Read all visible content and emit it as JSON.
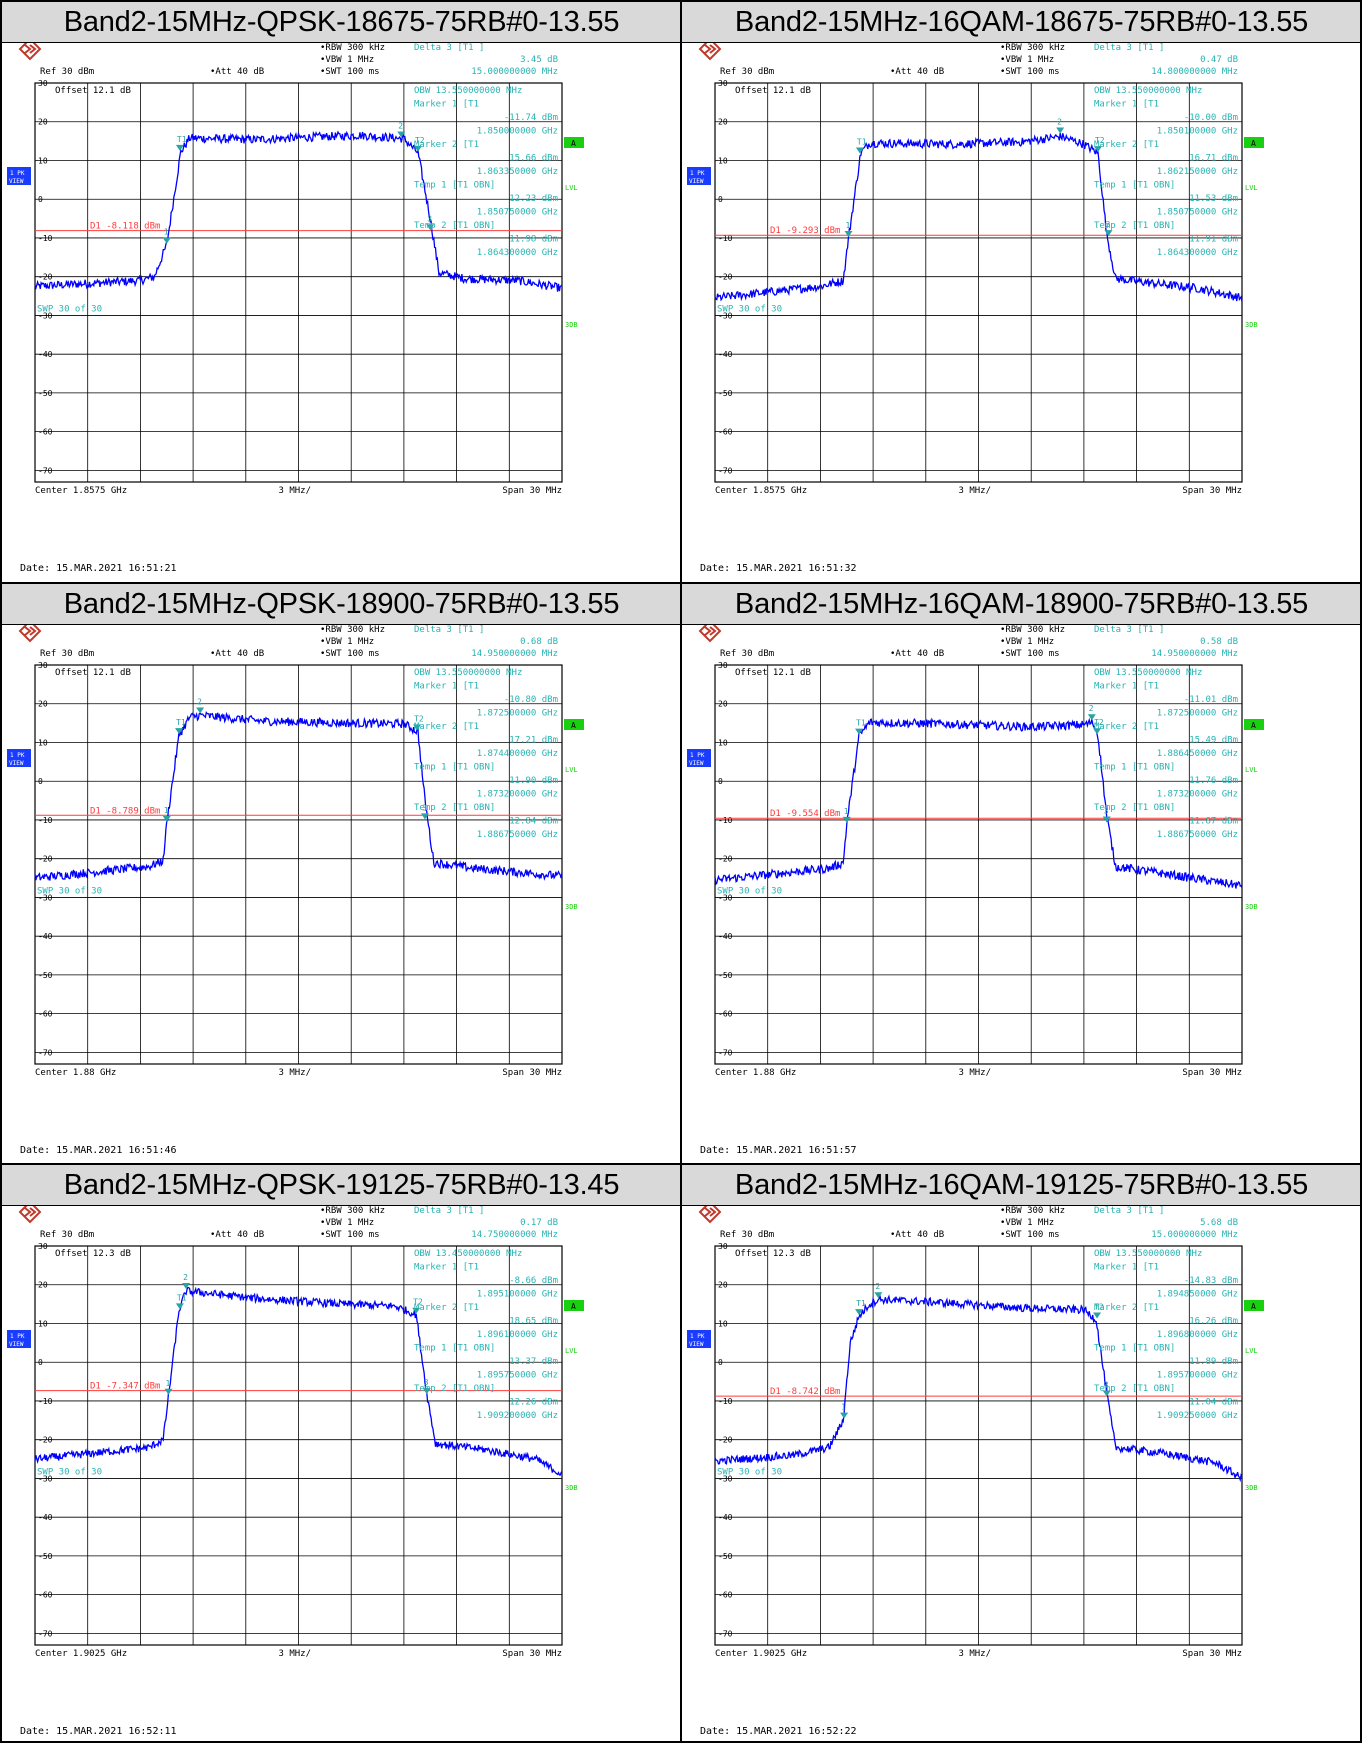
{
  "panels": [
    {
      "title": "Band2-15MHz-QPSK-18675-75RB#0-13.55",
      "settings": {
        "rbw": "RBW 300 kHz",
        "vbw": "VBW 1 MHz",
        "swt": "SWT 100 ms",
        "ref": "Ref  30 dBm",
        "att": "Att  40 dB",
        "offset": "Offset  12.1 dB"
      },
      "readout": [
        "Delta 3 [T1 ]",
        "3.45 dB",
        "15.000000000 MHz",
        "OBW 13.550000000 MHz",
        "Marker 1 [T1",
        "-11.74 dBm",
        "1.850000000 GHz",
        "Marker 2 [T1",
        "15.66 dBm",
        "1.863350000 GHz",
        "Temp 1 [T1 OBN]",
        "12.23 dBm",
        "1.850750000 GHz",
        "Temp 2 [T1 OBN]",
        "11.98 dBm",
        "1.864300000 GHz"
      ],
      "swp_text": "SWP  30 of  30",
      "d1_label": "D1  -8.118 dBm",
      "date": "Date: 15.MAR.2021  16:51:21",
      "chart_data": {
        "type": "line",
        "x_range_ghz": [
          1.8425,
          1.8725
        ],
        "ylim": [
          -73,
          30
        ],
        "y_ticks": [
          30,
          20,
          10,
          0,
          -10,
          -20,
          -30,
          -40,
          -50,
          -60,
          -70
        ],
        "center_label": "Center 1.8575 GHz",
        "div_label": "3 MHz/",
        "span_label": "Span 30 MHz",
        "d1_dbm": -8.118,
        "trace": {
          "points": [
            [
              1.8425,
              -22.5
            ],
            [
              1.8485,
              -21.0
            ],
            [
              1.8493,
              -20.0
            ],
            [
              1.85,
              -11.7
            ],
            [
              1.8508,
              12.2
            ],
            [
              1.8513,
              15.8
            ],
            [
              1.855,
              15.4
            ],
            [
              1.858,
              16.0
            ],
            [
              1.861,
              16.5
            ],
            [
              1.863,
              15.8
            ],
            [
              1.8635,
              15.6
            ],
            [
              1.8643,
              12.0
            ],
            [
              1.865,
              -5.0
            ],
            [
              1.8655,
              -19.0
            ],
            [
              1.867,
              -20.5
            ],
            [
              1.87,
              -21.0
            ],
            [
              1.8725,
              -23.0
            ]
          ],
          "noise": 1.1
        },
        "markers": [
          {
            "label": "1",
            "x": 1.85,
            "y": -11.74,
            "kind": "marker"
          },
          {
            "label": "2",
            "x": 1.86335,
            "y": 15.66,
            "kind": "marker"
          },
          {
            "label": "T1",
            "x": 1.85075,
            "y": 12.23,
            "kind": "temp"
          },
          {
            "label": "T2",
            "x": 1.8643,
            "y": 11.98,
            "kind": "temp"
          },
          {
            "label": "3",
            "x": 1.865,
            "y": -8.3,
            "kind": "delta"
          }
        ]
      }
    },
    {
      "title": "Band2-15MHz-16QAM-18675-75RB#0-13.55",
      "settings": {
        "rbw": "RBW 300 kHz",
        "vbw": "VBW 1 MHz",
        "swt": "SWT 100 ms",
        "ref": "Ref  30 dBm",
        "att": "Att  40 dB",
        "offset": "Offset  12.1 dB"
      },
      "readout": [
        "Delta 3 [T1 ]",
        "0.47 dB",
        "14.800000000 MHz",
        "OBW 13.550000000 MHz",
        "Marker 1 [T1",
        "-10.00 dBm",
        "1.850100000 GHz",
        "Marker 2 [T1",
        "16.71 dBm",
        "1.862150000 GHz",
        "Temp 1 [T1 OBN]",
        "11.53 dBm",
        "1.850750000 GHz",
        "Temp 2 [T1 OBN]",
        "11.91 dBm",
        "1.864300000 GHz"
      ],
      "swp_text": "SWP  30 of  30",
      "d1_label": "D1  -9.293 dBm",
      "date": "Date: 15.MAR.2021  16:51:32",
      "chart_data": {
        "type": "line",
        "x_range_ghz": [
          1.8425,
          1.8725
        ],
        "ylim": [
          -73,
          30
        ],
        "y_ticks": [
          30,
          20,
          10,
          0,
          -10,
          -20,
          -30,
          -40,
          -50,
          -60,
          -70
        ],
        "center_label": "Center 1.8575 GHz",
        "div_label": "3 MHz/",
        "span_label": "Span 30 MHz",
        "d1_dbm": -9.293,
        "trace": {
          "points": [
            [
              1.8425,
              -25.5
            ],
            [
              1.8485,
              -22.5
            ],
            [
              1.8498,
              -21.0
            ],
            [
              1.8501,
              -10.0
            ],
            [
              1.8508,
              12.0
            ],
            [
              1.8513,
              14.5
            ],
            [
              1.856,
              14.2
            ],
            [
              1.86,
              14.8
            ],
            [
              1.8622,
              16.2
            ],
            [
              1.8635,
              14.2
            ],
            [
              1.8643,
              11.9
            ],
            [
              1.8648,
              -9.0
            ],
            [
              1.8653,
              -20.5
            ],
            [
              1.868,
              -22.0
            ],
            [
              1.87,
              -23.0
            ],
            [
              1.8725,
              -25.5
            ]
          ],
          "noise": 1.1
        },
        "markers": [
          {
            "label": "1",
            "x": 1.8501,
            "y": -10.0,
            "kind": "marker"
          },
          {
            "label": "2",
            "x": 1.86215,
            "y": 16.71,
            "kind": "marker"
          },
          {
            "label": "T1",
            "x": 1.85075,
            "y": 11.53,
            "kind": "temp"
          },
          {
            "label": "T2",
            "x": 1.8643,
            "y": 11.91,
            "kind": "temp"
          },
          {
            "label": "3",
            "x": 1.8649,
            "y": -9.8,
            "kind": "delta"
          }
        ]
      }
    },
    {
      "title": "Band2-15MHz-QPSK-18900-75RB#0-13.55",
      "settings": {
        "rbw": "RBW 300 kHz",
        "vbw": "VBW 1 MHz",
        "swt": "SWT 100 ms",
        "ref": "Ref  30 dBm",
        "att": "Att  40 dB",
        "offset": "Offset  12.1 dB"
      },
      "readout": [
        "Delta 3 [T1 ]",
        "0.68 dB",
        "14.950000000 MHz",
        "OBW 13.550000000 MHz",
        "Marker 1 [T1",
        "-10.80 dBm",
        "1.872500000 GHz",
        "Marker 2 [T1",
        "17.21 dBm",
        "1.874400000 GHz",
        "Temp 1 [T1 OBN]",
        "11.90 dBm",
        "1.873200000 GHz",
        "Temp 2 [T1 OBN]",
        "12.84 dBm",
        "1.886750000 GHz"
      ],
      "swp_text": "SWP  30 of  30",
      "d1_label": "D1  -8.789 dBm",
      "date": "Date: 15.MAR.2021  16:51:46",
      "chart_data": {
        "type": "line",
        "x_range_ghz": [
          1.865,
          1.895
        ],
        "ylim": [
          -73,
          30
        ],
        "y_ticks": [
          30,
          20,
          10,
          0,
          -10,
          -20,
          -30,
          -40,
          -50,
          -60,
          -70
        ],
        "center_label": "Center 1.88 GHz",
        "div_label": "3 MHz/",
        "span_label": "Span 30 MHz",
        "d1_dbm": -8.789,
        "trace": {
          "points": [
            [
              1.865,
              -25.0
            ],
            [
              1.8715,
              -22.0
            ],
            [
              1.8723,
              -20.5
            ],
            [
              1.8725,
              -10.8
            ],
            [
              1.8732,
              11.9
            ],
            [
              1.8738,
              16.5
            ],
            [
              1.8744,
              17.0
            ],
            [
              1.878,
              15.5
            ],
            [
              1.883,
              15.0
            ],
            [
              1.886,
              14.8
            ],
            [
              1.8868,
              12.8
            ],
            [
              1.8872,
              -5.0
            ],
            [
              1.8877,
              -21.0
            ],
            [
              1.89,
              -22.5
            ],
            [
              1.895,
              -24.5
            ]
          ],
          "noise": 1.1
        },
        "markers": [
          {
            "label": "1",
            "x": 1.8725,
            "y": -10.8,
            "kind": "marker"
          },
          {
            "label": "2",
            "x": 1.8744,
            "y": 17.21,
            "kind": "marker"
          },
          {
            "label": "T1",
            "x": 1.8732,
            "y": 11.9,
            "kind": "temp"
          },
          {
            "label": "T2",
            "x": 1.88675,
            "y": 12.84,
            "kind": "temp"
          },
          {
            "label": "3",
            "x": 1.8872,
            "y": -10.1,
            "kind": "delta"
          }
        ]
      }
    },
    {
      "title": "Band2-15MHz-16QAM-18900-75RB#0-13.55",
      "settings": {
        "rbw": "RBW 300 kHz",
        "vbw": "VBW 1 MHz",
        "swt": "SWT 100 ms",
        "ref": "Ref  30 dBm",
        "att": "Att  40 dB",
        "offset": "Offset  12.1 dB"
      },
      "readout": [
        "Delta 3 [T1 ]",
        "0.58 dB",
        "14.950000000 MHz",
        "OBW 13.550000000 MHz",
        "Marker 1 [T1",
        "-11.01 dBm",
        "1.872500000 GHz",
        "Marker 2 [T1",
        "15.49 dBm",
        "1.886450000 GHz",
        "Temp 1 [T1 OBN]",
        "11.76 dBm",
        "1.873200000 GHz",
        "Temp 2 [T1 OBN]",
        "11.87 dBm",
        "1.886750000 GHz"
      ],
      "swp_text": "SWP  30 of  30",
      "d1_label": "D1  -9.554 dBm",
      "date": "Date: 15.MAR.2021  16:51:57",
      "chart_data": {
        "type": "line",
        "x_range_ghz": [
          1.865,
          1.895
        ],
        "ylim": [
          -73,
          30
        ],
        "y_ticks": [
          30,
          20,
          10,
          0,
          -10,
          -20,
          -30,
          -40,
          -50,
          -60,
          -70
        ],
        "center_label": "Center 1.88 GHz",
        "div_label": "3 MHz/",
        "span_label": "Span 30 MHz",
        "d1_dbm": -9.554,
        "trace": {
          "points": [
            [
              1.865,
              -25.5
            ],
            [
              1.8715,
              -22.5
            ],
            [
              1.8723,
              -21.0
            ],
            [
              1.8725,
              -11.0
            ],
            [
              1.8732,
              11.7
            ],
            [
              1.8738,
              15.2
            ],
            [
              1.878,
              14.8
            ],
            [
              1.883,
              14.0
            ],
            [
              1.886,
              14.6
            ],
            [
              1.8865,
              15.2
            ],
            [
              1.8868,
              11.9
            ],
            [
              1.8873,
              -9.0
            ],
            [
              1.8878,
              -22.0
            ],
            [
              1.89,
              -23.5
            ],
            [
              1.895,
              -27.0
            ]
          ],
          "noise": 1.1
        },
        "markers": [
          {
            "label": "1",
            "x": 1.8725,
            "y": -11.01,
            "kind": "marker"
          },
          {
            "label": "2",
            "x": 1.88645,
            "y": 15.49,
            "kind": "marker"
          },
          {
            "label": "T1",
            "x": 1.8732,
            "y": 11.76,
            "kind": "temp"
          },
          {
            "label": "T2",
            "x": 1.88675,
            "y": 11.87,
            "kind": "temp"
          },
          {
            "label": "3",
            "x": 1.8873,
            "y": -10.9,
            "kind": "delta"
          }
        ]
      }
    },
    {
      "title": "Band2-15MHz-QPSK-19125-75RB#0-13.45",
      "settings": {
        "rbw": "RBW 300 kHz",
        "vbw": "VBW 1 MHz",
        "swt": "SWT 100 ms",
        "ref": "Ref  30 dBm",
        "att": "Att  40 dB",
        "offset": "Offset  12.3 dB"
      },
      "readout": [
        "Delta 3 [T1 ]",
        "0.17 dB",
        "14.750000000 MHz",
        "OBW 13.450000000 MHz",
        "Marker 1 [T1",
        "-8.66 dBm",
        "1.895100000 GHz",
        "Marker 2 [T1",
        "18.65 dBm",
        "1.896100000 GHz",
        "Temp 1 [T1 OBN]",
        "13.37 dBm",
        "1.895750000 GHz",
        "Temp 2 [T1 OBN]",
        "12.26 dBm",
        "1.909200000 GHz"
      ],
      "swp_text": "SWP  30 of  30",
      "d1_label": "D1  -7.347 dBm",
      "date": "Date: 15.MAR.2021  16:52:11",
      "chart_data": {
        "type": "line",
        "x_range_ghz": [
          1.8875,
          1.9175
        ],
        "ylim": [
          -73,
          30
        ],
        "y_ticks": [
          30,
          20,
          10,
          0,
          -10,
          -20,
          -30,
          -40,
          -50,
          -60,
          -70
        ],
        "center_label": "Center 1.9025 GHz",
        "div_label": "3 MHz/",
        "span_label": "Span 30 MHz",
        "d1_dbm": -7.347,
        "trace": {
          "points": [
            [
              1.8875,
              -25.0
            ],
            [
              1.894,
              -22.0
            ],
            [
              1.8948,
              -20.0
            ],
            [
              1.8951,
              -8.7
            ],
            [
              1.8957,
              13.4
            ],
            [
              1.8961,
              18.4
            ],
            [
              1.9,
              16.5
            ],
            [
              1.905,
              15.0
            ],
            [
              1.908,
              14.5
            ],
            [
              1.9092,
              12.3
            ],
            [
              1.9098,
              -8.0
            ],
            [
              1.9103,
              -21.0
            ],
            [
              1.913,
              -22.5
            ],
            [
              1.916,
              -25.0
            ],
            [
              1.9175,
              -29.0
            ]
          ],
          "noise": 1.0
        },
        "markers": [
          {
            "label": "1",
            "x": 1.8951,
            "y": -8.66,
            "kind": "marker"
          },
          {
            "label": "2",
            "x": 1.8961,
            "y": 18.65,
            "kind": "marker"
          },
          {
            "label": "T1",
            "x": 1.89575,
            "y": 13.37,
            "kind": "temp"
          },
          {
            "label": "T2",
            "x": 1.9092,
            "y": 12.26,
            "kind": "temp"
          },
          {
            "label": "3",
            "x": 1.9098,
            "y": -8.5,
            "kind": "delta"
          }
        ]
      }
    },
    {
      "title": "Band2-15MHz-16QAM-19125-75RB#0-13.55",
      "settings": {
        "rbw": "RBW 300 kHz",
        "vbw": "VBW 1 MHz",
        "swt": "SWT 100 ms",
        "ref": "Ref  30 dBm",
        "att": "Att  40 dB",
        "offset": "Offset  12.3 dB"
      },
      "readout": [
        "Delta 3 [T1 ]",
        "5.68 dB",
        "15.000000000 MHz",
        "OBW 13.550000000 MHz",
        "Marker 1 [T1",
        "-14.83 dBm",
        "1.894850000 GHz",
        "Marker 2 [T1",
        "16.26 dBm",
        "1.896800000 GHz",
        "Temp 1 [T1 OBN]",
        "11.89 dBm",
        "1.895700000 GHz",
        "Temp 2 [T1 OBN]",
        "11.04 dBm",
        "1.909250000 GHz"
      ],
      "swp_text": "SWP  30 of  30",
      "d1_label": "D1  -8.742 dBm",
      "date": "Date: 15.MAR.2021  16:52:22",
      "chart_data": {
        "type": "line",
        "x_range_ghz": [
          1.8875,
          1.9175
        ],
        "ylim": [
          -73,
          30
        ],
        "y_ticks": [
          30,
          20,
          10,
          0,
          -10,
          -20,
          -30,
          -40,
          -50,
          -60,
          -70
        ],
        "center_label": "Center 1.9025 GHz",
        "div_label": "3 MHz/",
        "span_label": "Span 30 MHz",
        "d1_dbm": -8.742,
        "trace": {
          "points": [
            [
              1.8875,
              -25.5
            ],
            [
              1.892,
              -24.0
            ],
            [
              1.894,
              -22.0
            ],
            [
              1.8948,
              -15.0
            ],
            [
              1.8952,
              5.0
            ],
            [
              1.8957,
              11.9
            ],
            [
              1.8963,
              15.0
            ],
            [
              1.8968,
              16.2
            ],
            [
              1.9,
              15.5
            ],
            [
              1.905,
              14.0
            ],
            [
              1.9085,
              13.5
            ],
            [
              1.9092,
              11.0
            ],
            [
              1.9098,
              -8.0
            ],
            [
              1.9103,
              -22.0
            ],
            [
              1.913,
              -23.5
            ],
            [
              1.916,
              -26.0
            ],
            [
              1.9175,
              -30.0
            ]
          ],
          "noise": 1.0
        },
        "markers": [
          {
            "label": "1",
            "x": 1.89485,
            "y": -14.83,
            "kind": "marker"
          },
          {
            "label": "2",
            "x": 1.8968,
            "y": 16.26,
            "kind": "marker"
          },
          {
            "label": "T1",
            "x": 1.8957,
            "y": 11.89,
            "kind": "temp"
          },
          {
            "label": "T2",
            "x": 1.90925,
            "y": 11.04,
            "kind": "temp"
          },
          {
            "label": "3",
            "x": 1.9098,
            "y": -9.1,
            "kind": "delta"
          }
        ]
      }
    }
  ],
  "side_labels": {
    "view_top": "1 PK",
    "view_bottom": "VIEW",
    "a_badge": "A",
    "lvl": "LVL",
    "three_db": "3DB"
  },
  "colors": {
    "trace": "#0000ff",
    "grid": "#000000",
    "d1_line": "#ff3b3b",
    "marker": "#29a3a3",
    "readout": "#29b3b3",
    "title_bg": "#d9d9d9",
    "badge_green": "#18d010",
    "view_blue": "#1a3cff",
    "logo": "#c0392b"
  }
}
